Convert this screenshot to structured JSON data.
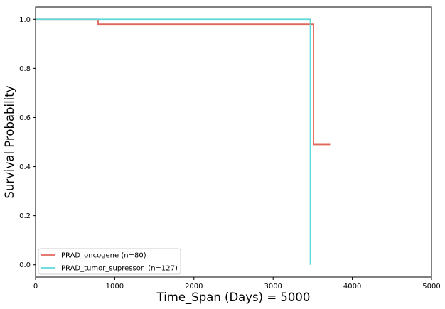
{
  "chart_data": {
    "type": "line",
    "chart_style": "step",
    "title": "",
    "xlabel": "Time_Span (Days) = 5000",
    "ylabel": "Survival Probability",
    "xlim": [
      0,
      5000
    ],
    "ylim": [
      -0.05,
      1.05
    ],
    "x_ticks": [
      0,
      1000,
      2000,
      3000,
      4000,
      5000
    ],
    "y_ticks": [
      0.0,
      0.2,
      0.4,
      0.6,
      0.8,
      1.0
    ],
    "x_tick_labels": [
      "0",
      "1000",
      "2000",
      "3000",
      "4000",
      "5000"
    ],
    "y_tick_labels": [
      "0.0",
      "0.2",
      "0.4",
      "0.6",
      "0.8",
      "1.0"
    ],
    "grid": false,
    "legend_position": "lower-left",
    "series": [
      {
        "name": "PRAD_oncogene (n=80)",
        "color": "#e0675c",
        "x": [
          0,
          790,
          790,
          3510,
          3510,
          3720
        ],
        "y": [
          1.0,
          1.0,
          0.98,
          0.98,
          0.49,
          0.49
        ]
      },
      {
        "name": "PRAD_tumor_supressor  (n=127)",
        "color": "#5fd8d8",
        "x": [
          0,
          3470,
          3470
        ],
        "y": [
          1.0,
          1.0,
          0.0
        ]
      }
    ]
  }
}
